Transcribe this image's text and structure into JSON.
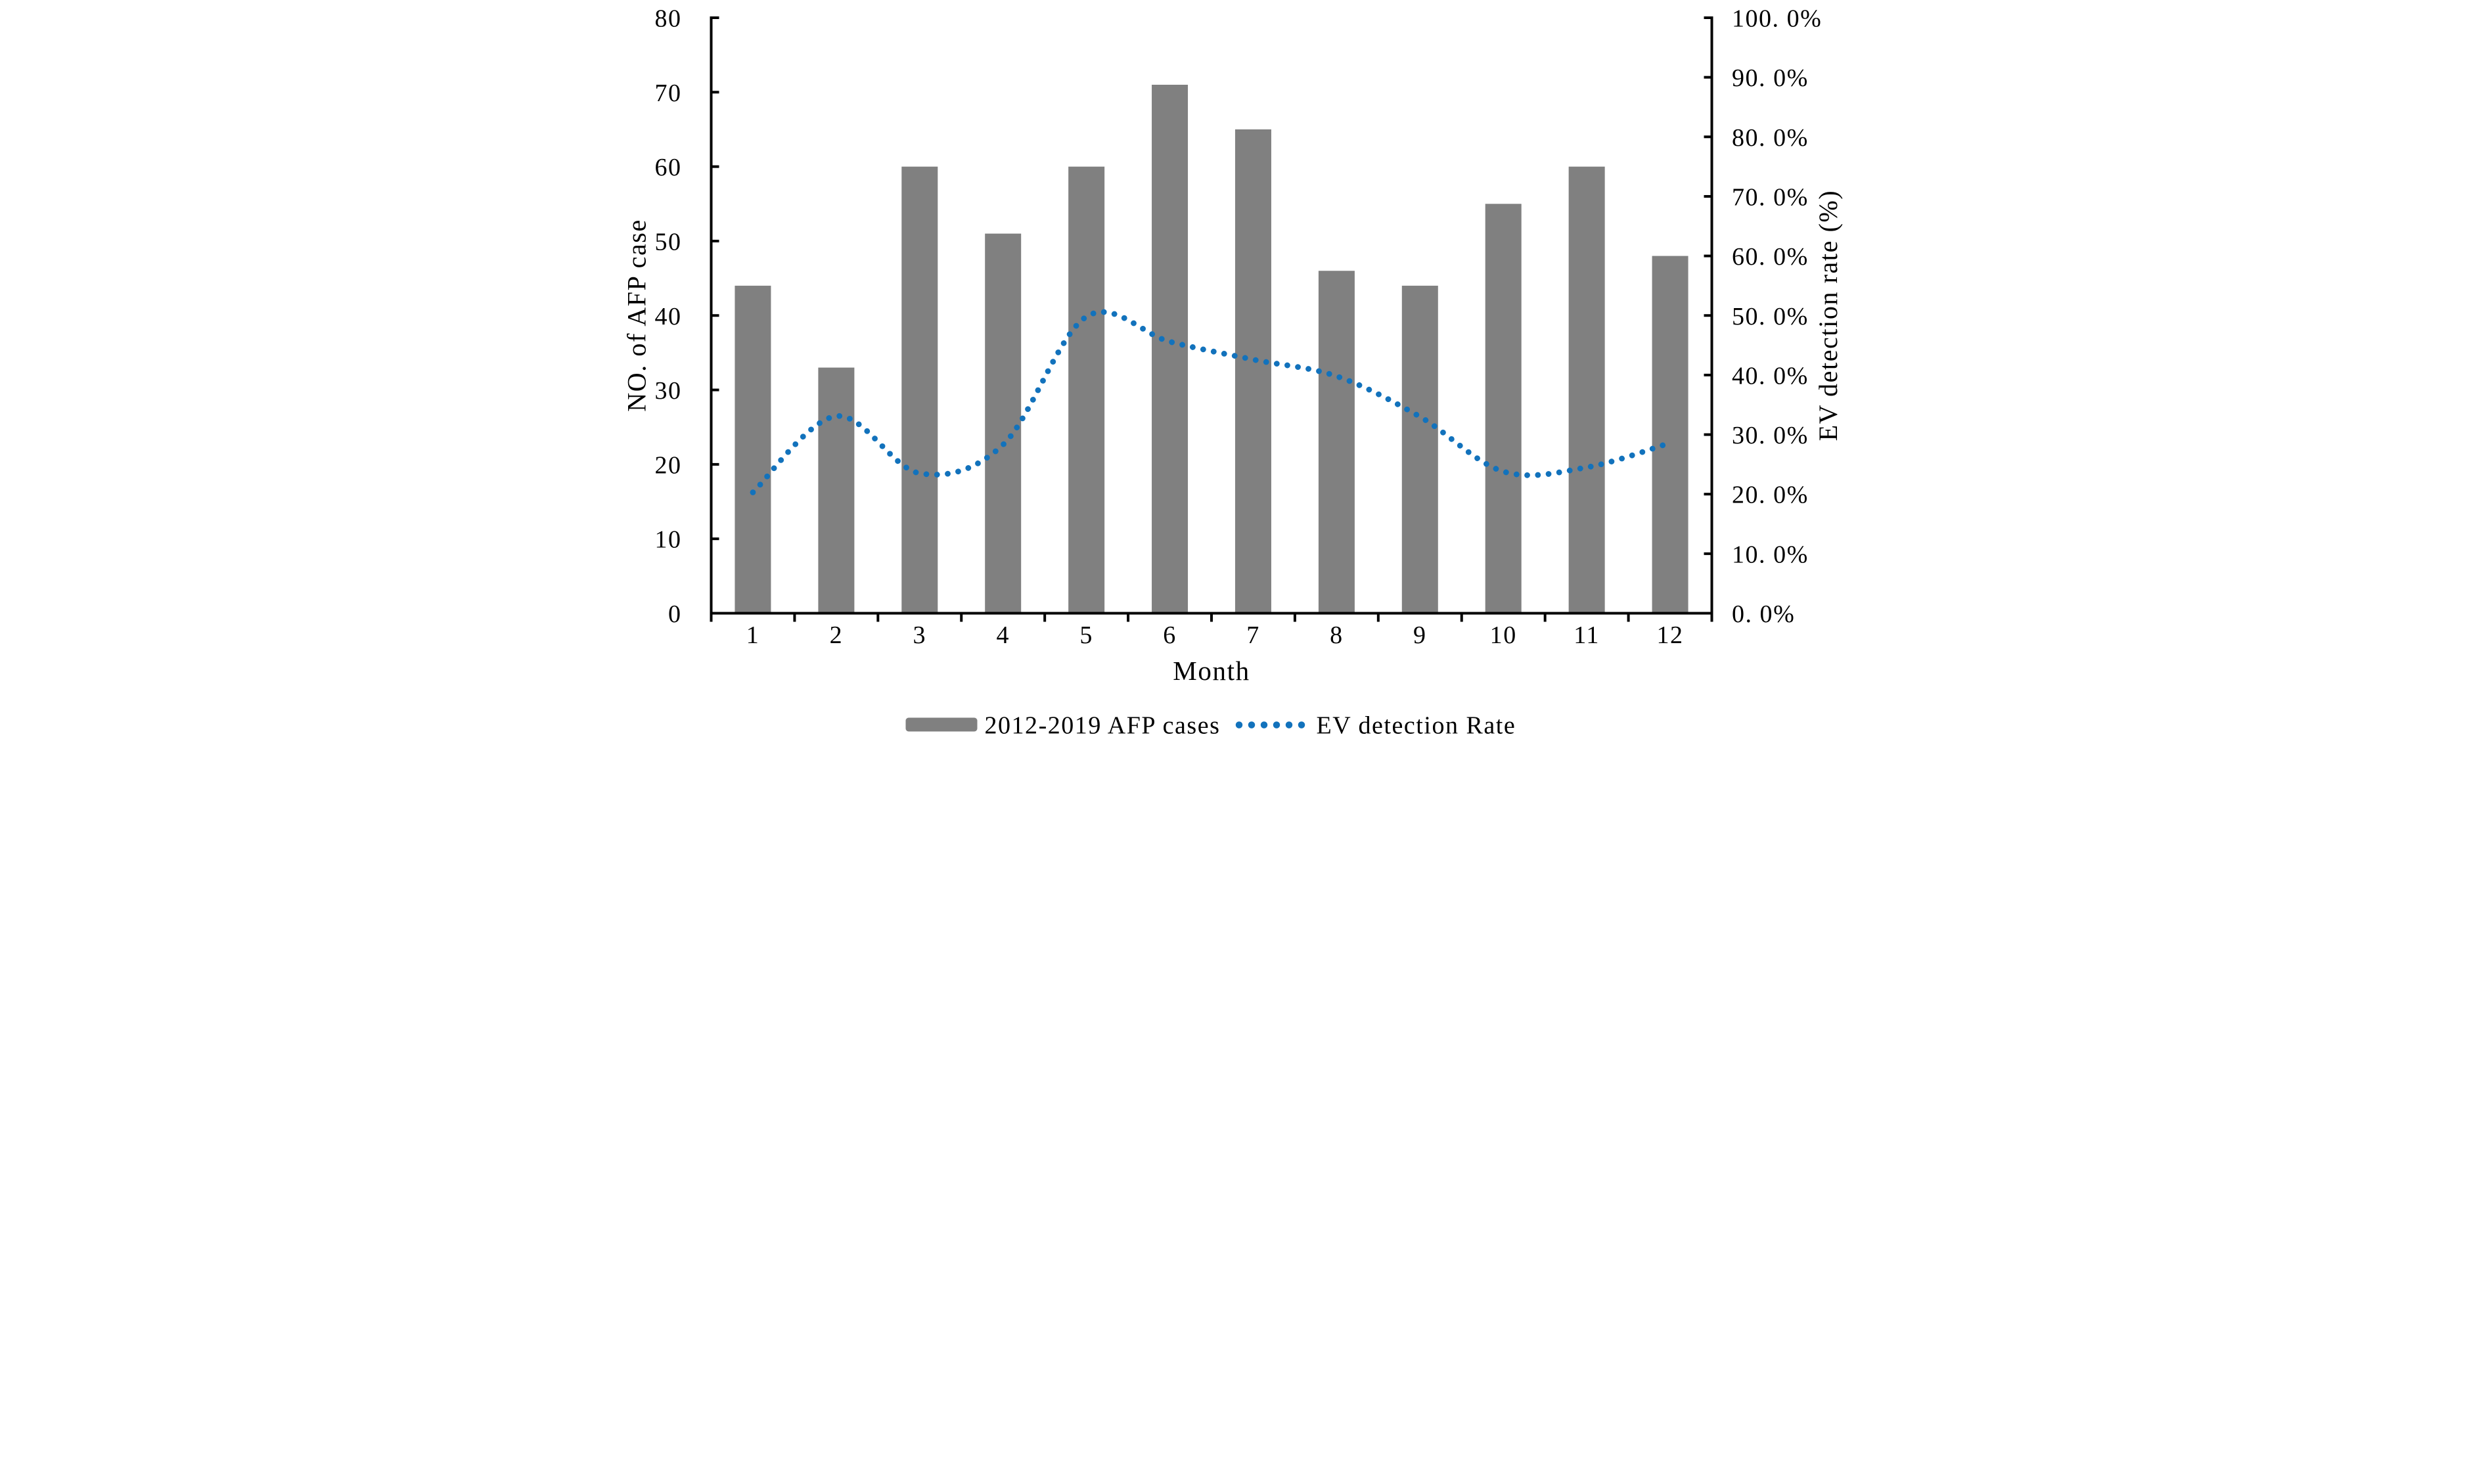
{
  "chart_data": {
    "type": "combo_bar_line",
    "title": "",
    "categories": [
      "1",
      "2",
      "3",
      "4",
      "5",
      "6",
      "7",
      "8",
      "9",
      "10",
      "11",
      "12"
    ],
    "x_axis": {
      "label": "Month"
    },
    "left_axis": {
      "label": "NO. of AFP case",
      "min": 0,
      "max": 80,
      "tick_step": 10,
      "tick_labels": [
        "0",
        "10",
        "20",
        "30",
        "40",
        "50",
        "60",
        "70",
        "80"
      ]
    },
    "right_axis": {
      "label": "EV detection rate (%)",
      "min": 0,
      "max": 100,
      "tick_step": 10,
      "tick_labels": [
        "0. 0%",
        "10. 0%",
        "20. 0%",
        "30. 0%",
        "40. 0%",
        "50. 0%",
        "60. 0%",
        "70. 0%",
        "80. 0%",
        "90. 0%",
        "100. 0%"
      ]
    },
    "series": [
      {
        "name": "2012-2019 AFP cases",
        "type": "bar",
        "axis": "left",
        "color": "#808080",
        "values": [
          44,
          33,
          60,
          51,
          60,
          71,
          65,
          46,
          44,
          55,
          60,
          48
        ]
      },
      {
        "name": "EV detection Rate",
        "type": "dotted_smooth_line",
        "axis": "right",
        "color": "#1272bc",
        "values_percent": [
          20.3,
          33.1,
          23.5,
          28.3,
          49.8,
          45.6,
          42.6,
          39.8,
          33.0,
          23.8,
          24.5,
          28.6
        ]
      }
    ],
    "legend_position": "bottom",
    "grid": false,
    "background": "#ffffff"
  }
}
